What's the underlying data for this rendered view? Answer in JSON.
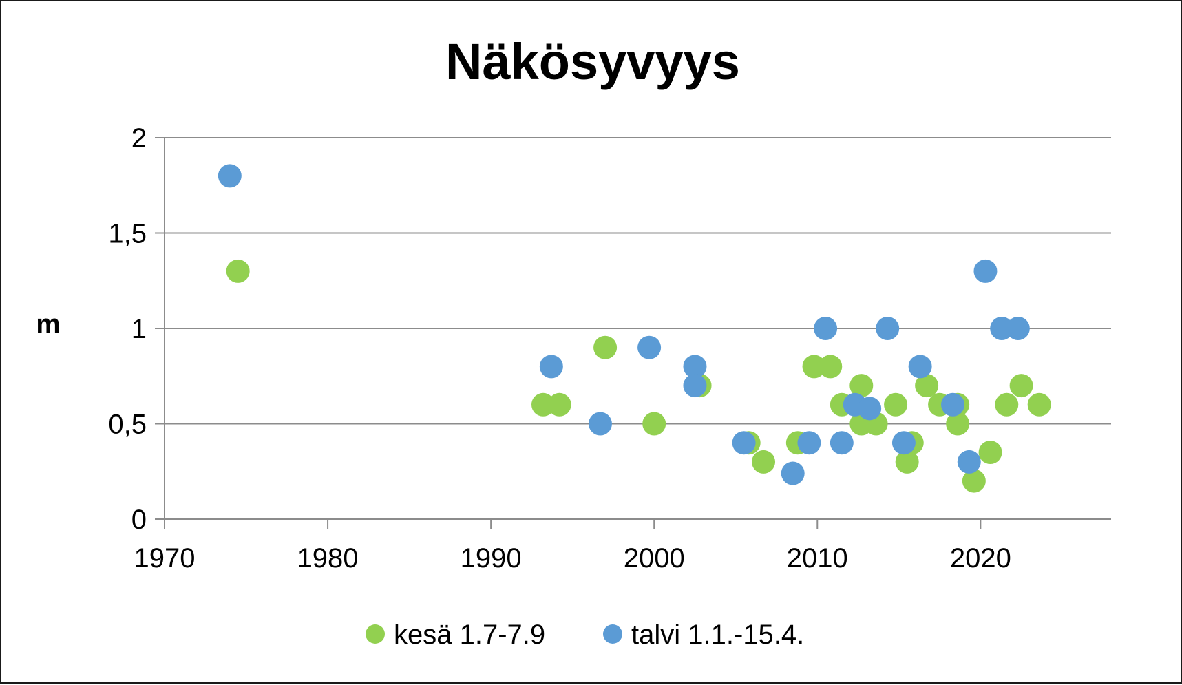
{
  "chart_data": {
    "type": "scatter",
    "title": "Näkösyvyys",
    "xlabel": "",
    "ylabel": "m",
    "xlim": [
      1970,
      2028
    ],
    "ylim": [
      0,
      2
    ],
    "x_ticks": [
      1970,
      1980,
      1990,
      2000,
      2010,
      2020
    ],
    "x_tick_labels": [
      "1970",
      "1980",
      "1990",
      "2000",
      "2010",
      "2020"
    ],
    "y_ticks": [
      0,
      0.5,
      1,
      1.5,
      2
    ],
    "y_tick_labels": [
      "0",
      "0,5",
      "1",
      "1,5",
      "2"
    ],
    "grid": "horizontal",
    "legend_position": "bottom",
    "series": [
      {
        "name": "kesä 1.7-7.9",
        "color": "#92d050",
        "points": [
          {
            "x": 1974.5,
            "y": 1.3
          },
          {
            "x": 1993.2,
            "y": 0.6
          },
          {
            "x": 1994.2,
            "y": 0.6
          },
          {
            "x": 1997.0,
            "y": 0.9
          },
          {
            "x": 2000.0,
            "y": 0.5
          },
          {
            "x": 2002.8,
            "y": 0.7
          },
          {
            "x": 2005.8,
            "y": 0.4
          },
          {
            "x": 2006.7,
            "y": 0.3
          },
          {
            "x": 2008.8,
            "y": 0.4
          },
          {
            "x": 2009.8,
            "y": 0.8
          },
          {
            "x": 2010.8,
            "y": 0.8
          },
          {
            "x": 2011.5,
            "y": 0.6
          },
          {
            "x": 2012.7,
            "y": 0.7
          },
          {
            "x": 2012.7,
            "y": 0.5
          },
          {
            "x": 2013.6,
            "y": 0.5
          },
          {
            "x": 2014.8,
            "y": 0.6
          },
          {
            "x": 2015.5,
            "y": 0.3
          },
          {
            "x": 2015.8,
            "y": 0.4
          },
          {
            "x": 2016.7,
            "y": 0.7
          },
          {
            "x": 2017.5,
            "y": 0.6
          },
          {
            "x": 2018.6,
            "y": 0.6
          },
          {
            "x": 2018.6,
            "y": 0.5
          },
          {
            "x": 2019.6,
            "y": 0.2
          },
          {
            "x": 2020.6,
            "y": 0.35
          },
          {
            "x": 2021.6,
            "y": 0.6
          },
          {
            "x": 2022.5,
            "y": 0.7
          },
          {
            "x": 2023.6,
            "y": 0.6
          }
        ]
      },
      {
        "name": "talvi 1.1.-15.4.",
        "color": "#5b9bd5",
        "points": [
          {
            "x": 1974.0,
            "y": 1.8
          },
          {
            "x": 1993.7,
            "y": 0.8
          },
          {
            "x": 1996.7,
            "y": 0.5
          },
          {
            "x": 1999.7,
            "y": 0.9
          },
          {
            "x": 2002.5,
            "y": 0.8
          },
          {
            "x": 2002.5,
            "y": 0.7
          },
          {
            "x": 2005.5,
            "y": 0.4
          },
          {
            "x": 2008.5,
            "y": 0.24
          },
          {
            "x": 2009.5,
            "y": 0.4
          },
          {
            "x": 2010.5,
            "y": 1.0
          },
          {
            "x": 2011.5,
            "y": 0.4
          },
          {
            "x": 2012.3,
            "y": 0.6
          },
          {
            "x": 2013.2,
            "y": 0.58
          },
          {
            "x": 2014.3,
            "y": 1.0
          },
          {
            "x": 2015.3,
            "y": 0.4
          },
          {
            "x": 2016.3,
            "y": 0.8
          },
          {
            "x": 2018.3,
            "y": 0.6
          },
          {
            "x": 2019.3,
            "y": 0.3
          },
          {
            "x": 2020.3,
            "y": 1.3
          },
          {
            "x": 2021.3,
            "y": 1.0
          },
          {
            "x": 2022.3,
            "y": 1.0
          }
        ]
      }
    ]
  }
}
